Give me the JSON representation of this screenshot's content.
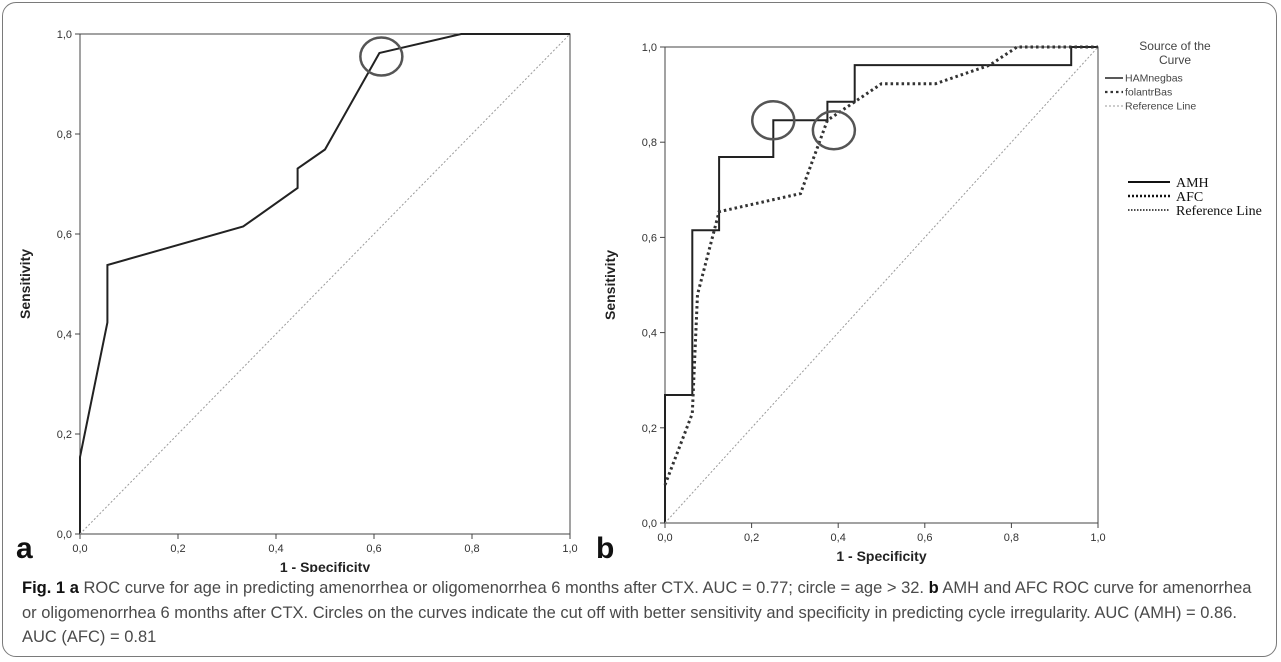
{
  "chart_data": [
    {
      "type": "line",
      "panel_label": "a",
      "xlabel": "1 - Specificity",
      "ylabel": "Sensitivity",
      "xlim": [
        0,
        1
      ],
      "ylim": [
        0,
        1
      ],
      "x_ticks": [
        "0,0",
        "0,2",
        "0,4",
        "0,6",
        "0,8",
        "1,0"
      ],
      "y_ticks": [
        "0,0",
        "0,2",
        "0,4",
        "0,6",
        "0,8",
        "1,0"
      ],
      "grid": false,
      "series": [
        {
          "x": [
            0,
            0,
            0.056,
            0.056,
            0.333,
            0.444,
            0.444,
            0.5,
            0.611,
            0.611,
            0.778,
            1.0
          ],
          "y": [
            0,
            0.154,
            0.423,
            0.538,
            0.615,
            0.692,
            0.731,
            0.769,
            0.962,
            0.962,
            1.0,
            1.0
          ],
          "style": "solid"
        },
        {
          "x": [
            0,
            1
          ],
          "y": [
            0,
            1
          ],
          "style": "reference"
        }
      ],
      "circles": [
        {
          "x": 0.615,
          "y": 0.955
        }
      ]
    },
    {
      "type": "line",
      "panel_label": "b",
      "xlabel": "1 - Specificity",
      "ylabel": "Sensitivity",
      "xlim": [
        0,
        1
      ],
      "ylim": [
        0,
        1
      ],
      "x_ticks": [
        "0,0",
        "0,2",
        "0,4",
        "0,6",
        "0,8",
        "1,0"
      ],
      "y_ticks": [
        "0,0",
        "0,2",
        "0,4",
        "0,6",
        "0,8",
        "1,0"
      ],
      "grid": false,
      "legend_title": "Source of the Curve",
      "legend_placement": "right",
      "series": [
        {
          "name": "HAMnegbas",
          "style": "solid",
          "x": [
            0,
            0,
            0.063,
            0.063,
            0.125,
            0.125,
            0.25,
            0.25,
            0.375,
            0.375,
            0.438,
            0.438,
            0.938,
            0.938,
            1.0
          ],
          "y": [
            0,
            0.269,
            0.269,
            0.615,
            0.615,
            0.769,
            0.769,
            0.846,
            0.846,
            0.885,
            0.885,
            0.962,
            0.962,
            1.0,
            1.0
          ]
        },
        {
          "name": "folantrBas",
          "style": "dotted",
          "x": [
            0,
            0.063,
            0.075,
            0.125,
            0.313,
            0.375,
            0.5,
            0.625,
            0.75,
            0.813,
            1.0
          ],
          "y": [
            0.08,
            0.23,
            0.48,
            0.654,
            0.692,
            0.846,
            0.923,
            0.923,
            0.962,
            1.0,
            1.0
          ]
        },
        {
          "name": "Reference Line",
          "style": "reference",
          "x": [
            0,
            1
          ],
          "y": [
            0,
            1
          ]
        }
      ],
      "circles": [
        {
          "x": 0.25,
          "y": 0.846
        },
        {
          "x": 0.39,
          "y": 0.825
        }
      ],
      "key": [
        {
          "label": "AMH",
          "style": "solid"
        },
        {
          "label": "AFC",
          "style": "dotted"
        },
        {
          "label": "Reference Line",
          "style": "fine-dotted"
        }
      ]
    }
  ],
  "caption": {
    "fig_label": "Fig. 1",
    "panel_a_label": "a",
    "panel_a_text": "ROC curve for age in predicting amenorrhea or oligomenorrhea 6 months after CTX. AUC = 0.77; circle = age > 32.",
    "panel_b_label": "b",
    "panel_b_text": "AMH and AFC ROC curve for amenorrhea or oligomenorrhea 6 months after CTX. Circles on the curves indicate the cut off with better sensitivity and specificity in predicting cycle irregularity. AUC (AMH) = 0.86. AUC (AFC) = 0.81"
  }
}
